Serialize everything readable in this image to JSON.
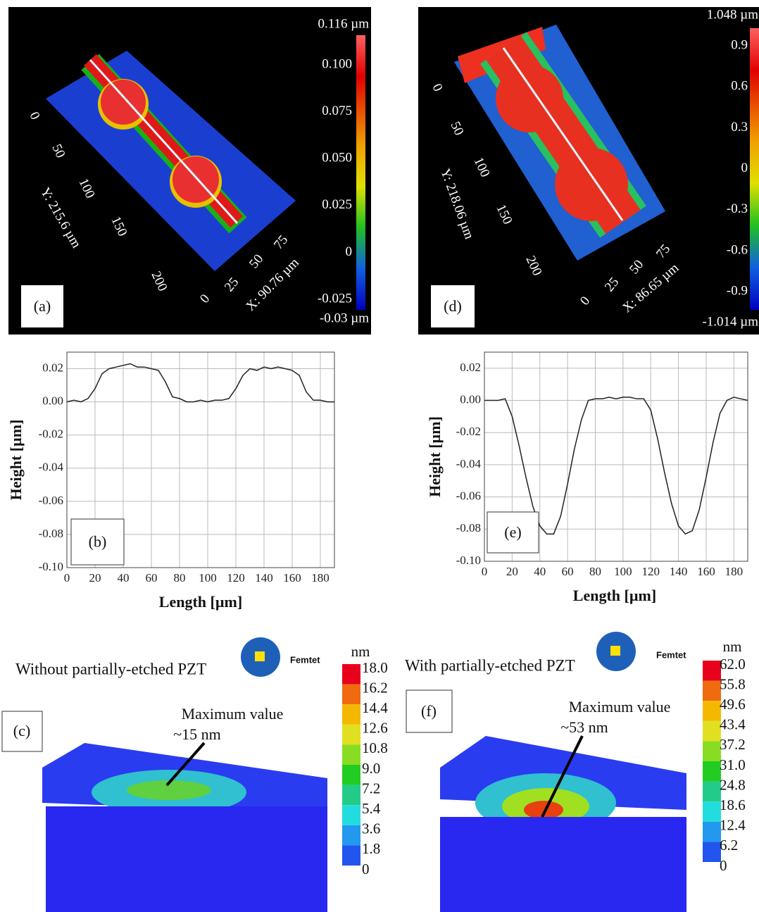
{
  "panels": {
    "a": {
      "label": "(a)",
      "scale_max": "0.116 µm",
      "scale_min": "-0.03 µm",
      "scale_ticks": [
        "0.100",
        "0.075",
        "0.050",
        "0.025",
        "0",
        "-0.025"
      ],
      "y_axis_title": "Y: 215.6 µm",
      "y_ticks": [
        "0",
        "50",
        "100",
        "150",
        "200"
      ],
      "x_axis_title": "X: 90.76 µm",
      "x_ticks": [
        "0",
        "25",
        "50",
        "75"
      ]
    },
    "d": {
      "label": "(d)",
      "scale_max": "1.048 µm",
      "scale_min": "-1.014 µm",
      "scale_ticks": [
        "0.9",
        "0.6",
        "0.3",
        "0",
        "-0.3",
        "-0.6",
        "-0.9"
      ],
      "y_axis_title": "Y: 218.06 µm",
      "y_ticks": [
        "0",
        "50",
        "100",
        "150",
        "200"
      ],
      "x_axis_title": "X: 86.65 µm",
      "x_ticks": [
        "0",
        "25",
        "50",
        "75"
      ]
    },
    "c": {
      "label": "(c)",
      "title": "Without partially-etched PZT",
      "logo": "Femtet",
      "unit": "nm",
      "scale_ticks": [
        "18.0",
        "16.2",
        "14.4",
        "12.6",
        "10.8",
        "9.0",
        "7.2",
        "5.4",
        "3.6",
        "1.8",
        "0"
      ],
      "annotation": "Maximum value",
      "max_value": "~15 nm"
    },
    "f": {
      "label": "(f)",
      "title": "With partially-etched PZT",
      "logo": "Femtet",
      "unit": "nm",
      "scale_ticks": [
        "62.0",
        "55.8",
        "49.6",
        "43.4",
        "37.2",
        "31.0",
        "24.8",
        "18.6",
        "12.4",
        "6.2",
        "0"
      ],
      "annotation": "Maximum value",
      "max_value": "~53 nm"
    }
  },
  "chart_data": [
    {
      "type": "line",
      "panel_label": "(b)",
      "x_label": "Length [µm]",
      "y_label": "Height [µm]",
      "color": "#222222",
      "grid": true,
      "x": [
        0,
        5,
        10,
        15,
        20,
        25,
        30,
        35,
        40,
        45,
        50,
        55,
        60,
        65,
        70,
        75,
        80,
        85,
        90,
        95,
        100,
        105,
        110,
        115,
        120,
        125,
        130,
        135,
        140,
        145,
        150,
        155,
        160,
        165,
        170,
        175,
        180,
        185,
        190
      ],
      "values": [
        0.0,
        0.001,
        0.0,
        0.002,
        0.008,
        0.017,
        0.02,
        0.021,
        0.022,
        0.023,
        0.021,
        0.021,
        0.02,
        0.019,
        0.012,
        0.003,
        0.002,
        0.0,
        0.0,
        0.001,
        0.0,
        0.001,
        0.001,
        0.002,
        0.008,
        0.016,
        0.02,
        0.019,
        0.021,
        0.02,
        0.021,
        0.02,
        0.019,
        0.016,
        0.006,
        0.001,
        0.001,
        0.0,
        0.0
      ],
      "xlim": [
        0,
        190
      ],
      "ylim": [
        -0.1,
        0.03
      ],
      "xticks": [
        0,
        20,
        40,
        60,
        80,
        100,
        120,
        140,
        160,
        180
      ],
      "yticks": [
        0.02,
        {
          "value": 0,
          "label": "0.00"
        },
        -0.02,
        -0.04,
        -0.06,
        -0.08,
        {
          "value": -0.1,
          "label": "-0.10"
        }
      ]
    },
    {
      "type": "line",
      "panel_label": "(e)",
      "x_label": "Length [µm]",
      "y_label": "Height [µm]",
      "color": "#222222",
      "grid": true,
      "x": [
        0,
        5,
        10,
        15,
        20,
        25,
        30,
        35,
        40,
        45,
        50,
        55,
        60,
        65,
        70,
        75,
        80,
        85,
        90,
        95,
        100,
        105,
        110,
        115,
        120,
        125,
        130,
        135,
        140,
        145,
        150,
        155,
        160,
        165,
        170,
        175,
        180,
        185,
        190
      ],
      "values": [
        0.0,
        0.0,
        0.0,
        0.001,
        -0.01,
        -0.028,
        -0.048,
        -0.066,
        -0.078,
        -0.083,
        -0.083,
        -0.072,
        -0.052,
        -0.03,
        -0.012,
        0.0,
        0.001,
        0.001,
        0.002,
        0.001,
        0.002,
        0.002,
        0.001,
        0.001,
        -0.006,
        -0.024,
        -0.045,
        -0.064,
        -0.078,
        -0.083,
        -0.081,
        -0.068,
        -0.048,
        -0.026,
        -0.008,
        0.0,
        0.002,
        0.001,
        0.0
      ],
      "xlim": [
        0,
        190
      ],
      "ylim": [
        -0.1,
        0.03
      ],
      "xticks": [
        0,
        20,
        40,
        60,
        80,
        100,
        120,
        140,
        160,
        180
      ],
      "yticks": [
        0.02,
        {
          "value": 0,
          "label": "0.00"
        },
        -0.02,
        -0.04,
        -0.06,
        -0.08,
        {
          "value": -0.1,
          "label": "-0.10"
        }
      ]
    }
  ]
}
